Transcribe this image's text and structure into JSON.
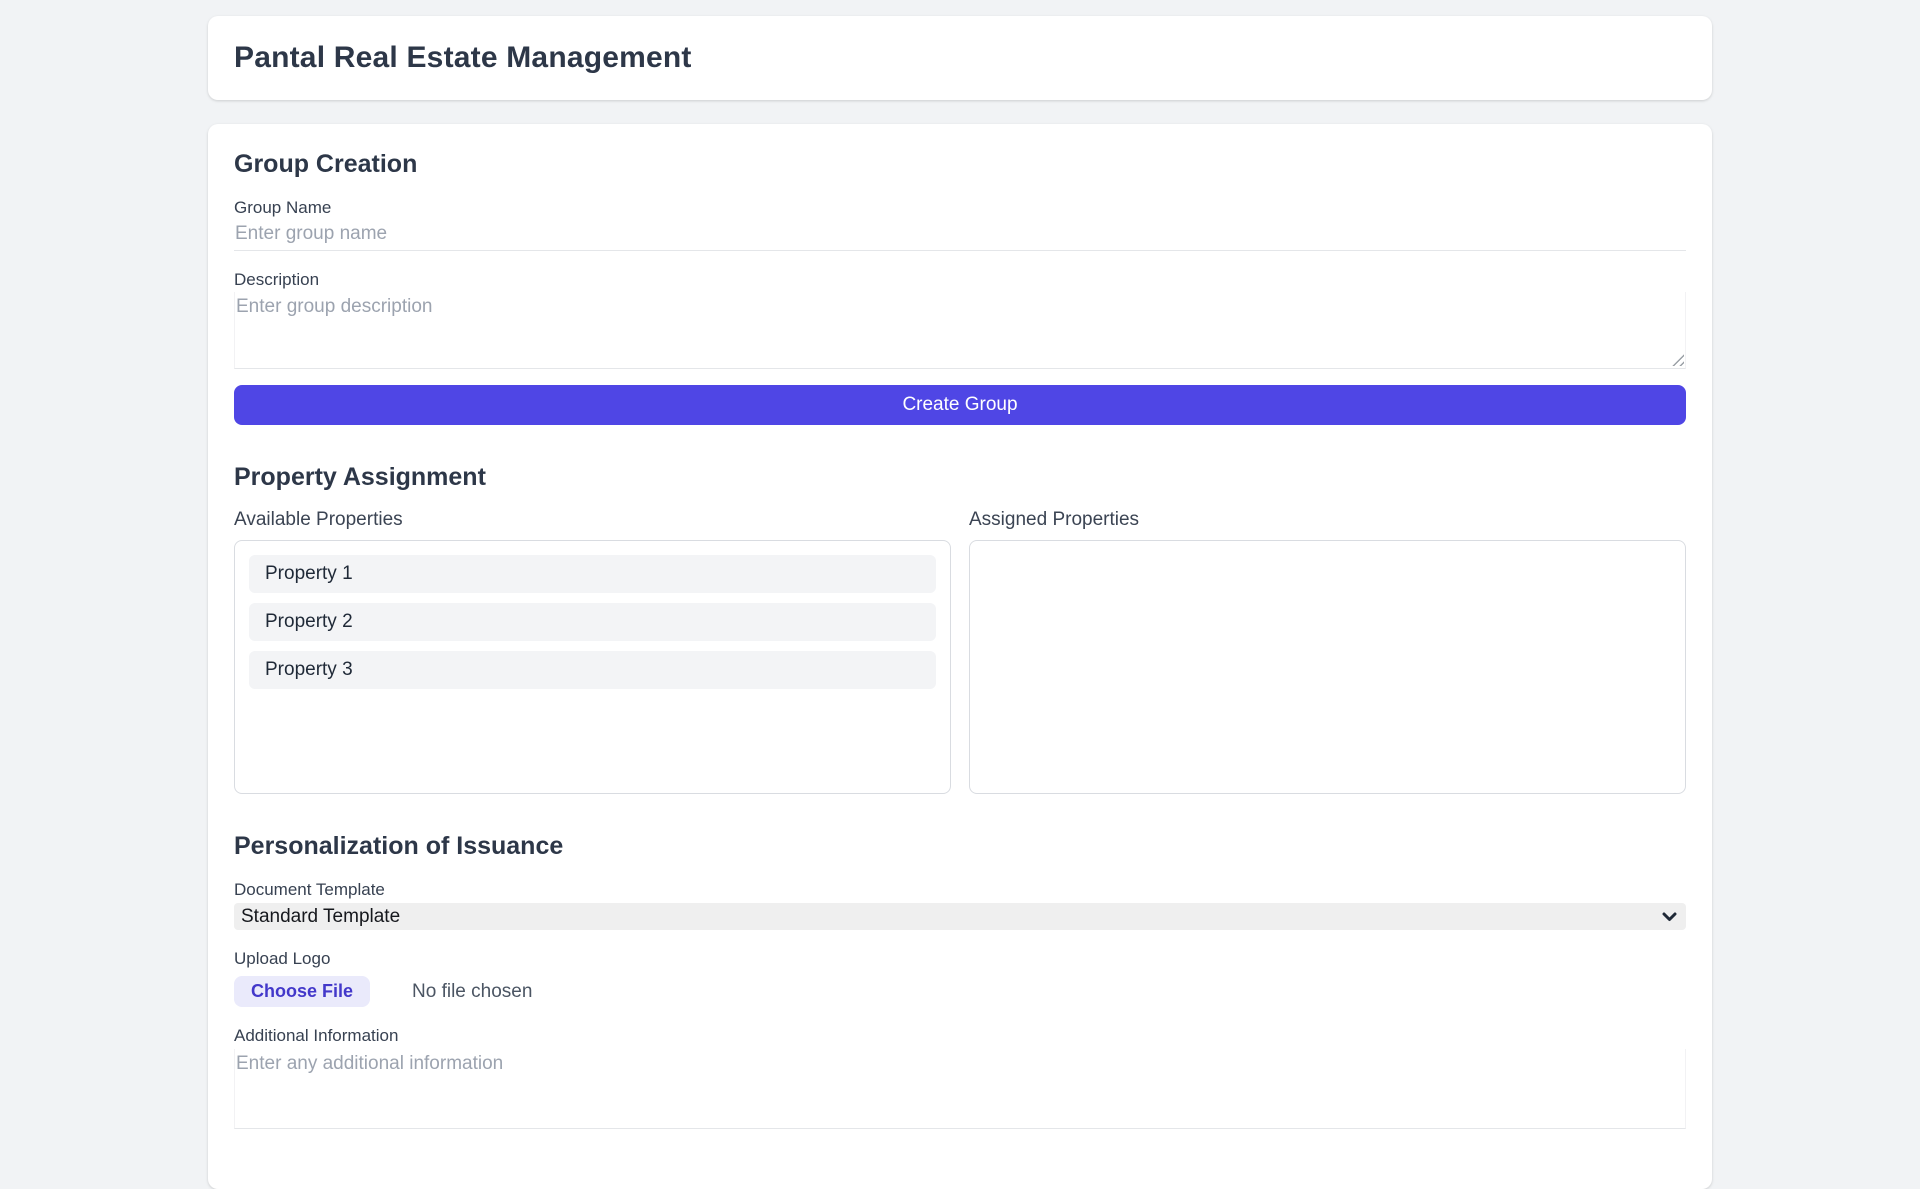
{
  "page": {
    "title": "Pantal Real Estate Management"
  },
  "colors": {
    "accent": "#4f46e5",
    "file_button_bg": "#eaeafb",
    "file_button_text": "#4338ca",
    "page_background": "#f1f3f5",
    "heading_text": "#2d3748",
    "placeholder_text": "#9ca3af"
  },
  "group_creation": {
    "heading": "Group Creation",
    "group_name_label": "Group Name",
    "group_name_placeholder": "Enter group name",
    "group_name_value": "",
    "description_label": "Description",
    "description_placeholder": "Enter group description",
    "description_value": "",
    "create_button_label": "Create Group"
  },
  "property_assignment": {
    "heading": "Property Assignment",
    "available_label": "Available Properties",
    "assigned_label": "Assigned Properties",
    "available_items": [
      "Property 1",
      "Property 2",
      "Property 3"
    ],
    "assigned_items": []
  },
  "personalization": {
    "heading": "Personalization of Issuance",
    "document_template_label": "Document Template",
    "document_template_value": "Standard Template",
    "upload_logo_label": "Upload Logo",
    "choose_file_label": "Choose File",
    "no_file_text": "No file chosen",
    "additional_info_label": "Additional Information",
    "additional_info_placeholder": "Enter any additional information",
    "additional_info_value": ""
  },
  "icons": {
    "select_chevron": "chevron-down-icon",
    "textarea_grip": "resize-grip-icon"
  }
}
